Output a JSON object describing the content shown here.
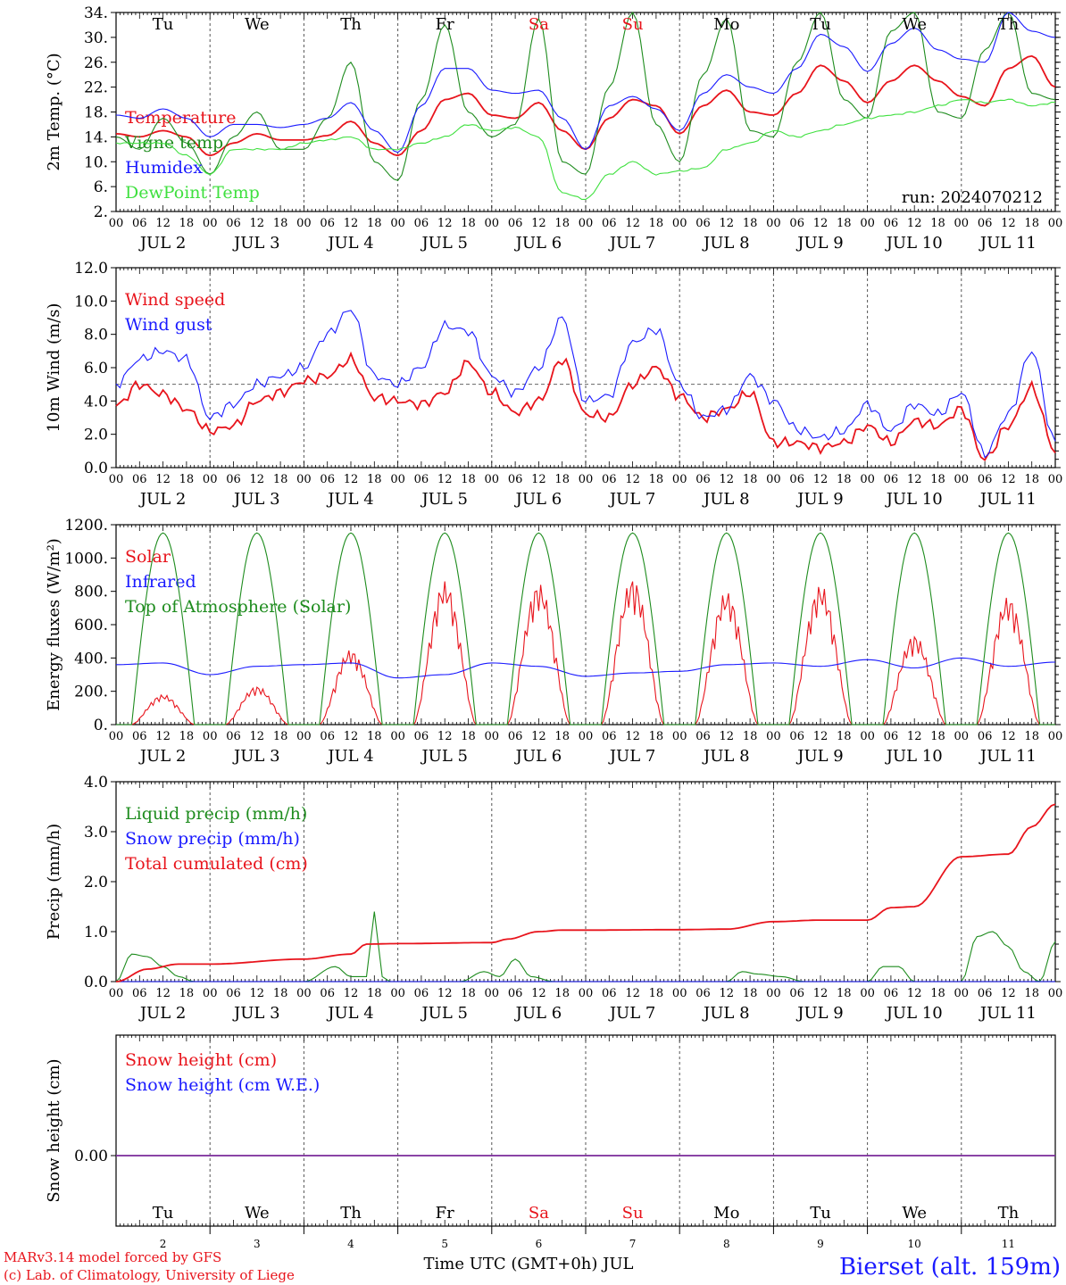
{
  "run_label": "run: 2024070212",
  "footer": {
    "credit1": "MARv3.14 model forced by GFS",
    "credit2": "(c) Lab. of Climatology, University of Liege",
    "axis_title": "Time UTC (GMT+0h) JUL",
    "station": "Bierset (alt. 159m)"
  },
  "colors": {
    "red": "#e8141c",
    "green": "#1e8c1e",
    "blue": "#1a1aff",
    "lightgreen": "#3fe03f",
    "purple": "#7a2a9a"
  },
  "time_axis": {
    "hour_ticks": [
      "00",
      "06",
      "12",
      "18"
    ],
    "final_tick": "00",
    "dates": [
      "JUL  2",
      "JUL  3",
      "JUL  4",
      "JUL  5",
      "JUL  6",
      "JUL  7",
      "JUL  8",
      "JUL  9",
      "JUL 10",
      "JUL 11"
    ],
    "day_names": [
      "Tu",
      "We",
      "Th",
      "Fr",
      "Sa",
      "Su",
      "Mo",
      "Tu",
      "We",
      "Th"
    ],
    "weekend_index": [
      4,
      5
    ],
    "day_numbers": [
      "2",
      "3",
      "4",
      "5",
      "6",
      "7",
      "8",
      "9",
      "10",
      "11"
    ]
  },
  "chart_data": [
    {
      "type": "line",
      "ylabel": "2m Temp. (°C)",
      "ylim": [
        2,
        34
      ],
      "yticks": [
        "2.",
        "6.",
        "10.",
        "14.",
        "18.",
        "22.",
        "26.",
        "30.",
        "34."
      ],
      "x_unit": "hours since JUL 2 00 UTC",
      "series": [
        {
          "name": "Temperature",
          "color": "red",
          "x": [
            0,
            6,
            12,
            18,
            24,
            30,
            36,
            42,
            48,
            54,
            60,
            66,
            72,
            78,
            84,
            90,
            96,
            102,
            108,
            114,
            120,
            126,
            132,
            138,
            144,
            150,
            156,
            162,
            168,
            174,
            180,
            186,
            192,
            198,
            204,
            210,
            216,
            222,
            228,
            234,
            240
          ],
          "y": [
            14.5,
            14,
            15,
            14,
            11,
            13,
            14.5,
            13.5,
            13.5,
            14.2,
            16.5,
            13,
            11,
            15,
            20,
            21,
            17.5,
            17,
            19.5,
            15,
            12,
            17,
            20,
            19,
            14.5,
            19,
            21.5,
            18,
            17.5,
            21,
            25.5,
            23,
            19.5,
            23,
            25.5,
            23,
            20.5,
            19,
            25,
            27,
            22
          ]
        },
        {
          "name": "Vigne temp",
          "color": "green",
          "x": [
            0,
            6,
            12,
            18,
            24,
            30,
            36,
            42,
            48,
            54,
            60,
            66,
            72,
            78,
            84,
            90,
            96,
            102,
            108,
            114,
            120,
            126,
            132,
            138,
            144,
            150,
            156,
            162,
            168,
            174,
            180,
            186,
            192,
            198,
            204,
            210,
            216,
            222,
            228,
            234,
            240
          ],
          "y": [
            14,
            12,
            17,
            13,
            8,
            14,
            18,
            12,
            12,
            17,
            26,
            10,
            7,
            20,
            32,
            18,
            14,
            16,
            33,
            10,
            8,
            22,
            34,
            16,
            10,
            24,
            33,
            15,
            14,
            26,
            34,
            20,
            17,
            31,
            34,
            18,
            17,
            28,
            34,
            21,
            20
          ]
        },
        {
          "name": "Humidex",
          "color": "blue",
          "x": [
            0,
            6,
            12,
            18,
            24,
            30,
            36,
            42,
            48,
            54,
            60,
            66,
            72,
            78,
            84,
            90,
            96,
            102,
            108,
            114,
            120,
            126,
            132,
            138,
            144,
            150,
            156,
            162,
            168,
            174,
            180,
            186,
            192,
            198,
            204,
            210,
            216,
            222,
            228,
            234,
            240
          ],
          "y": [
            17.5,
            17,
            18.5,
            17,
            14,
            16,
            16,
            15.5,
            16,
            17,
            19.5,
            15,
            11.5,
            19,
            25,
            25,
            21.5,
            21,
            21.5,
            17,
            12,
            19,
            20.5,
            18.5,
            15,
            21,
            24,
            22,
            21,
            25,
            30.5,
            28.5,
            24.5,
            29,
            31.5,
            28,
            26.5,
            26,
            34,
            31,
            30
          ]
        },
        {
          "name": "DewPoint Temp",
          "color": "lightgreen",
          "x": [
            0,
            6,
            12,
            18,
            24,
            30,
            36,
            42,
            48,
            54,
            60,
            66,
            72,
            78,
            84,
            90,
            96,
            102,
            108,
            114,
            120,
            126,
            132,
            138,
            144,
            150,
            156,
            162,
            168,
            174,
            180,
            186,
            192,
            198,
            204,
            210,
            216,
            222,
            228,
            234,
            240
          ],
          "y": [
            13,
            13,
            13,
            11,
            8,
            12,
            12,
            12,
            13,
            13.5,
            14,
            12,
            12,
            13,
            14,
            16,
            15,
            15.5,
            14,
            5,
            4,
            8,
            10,
            8,
            8.5,
            9,
            12,
            13,
            15,
            14,
            15,
            16,
            17,
            17.5,
            18,
            19,
            20,
            19.5,
            20,
            19,
            19.5
          ]
        }
      ],
      "day_labels_top": true,
      "run_label": true
    },
    {
      "type": "line",
      "ylabel": "10m Wind (m/s)",
      "ylim": [
        0,
        12
      ],
      "yticks": [
        "0.0",
        "2.0",
        "4.0",
        "6.0",
        "8.0",
        "10.0",
        "12.0"
      ],
      "reference_line": 5.0,
      "series": [
        {
          "name": "Wind speed",
          "color": "red",
          "x": [
            0,
            6,
            12,
            18,
            24,
            30,
            36,
            42,
            48,
            54,
            60,
            66,
            72,
            78,
            84,
            90,
            96,
            102,
            108,
            114,
            120,
            126,
            132,
            138,
            144,
            150,
            156,
            162,
            168,
            174,
            180,
            186,
            192,
            198,
            204,
            210,
            216,
            222,
            228,
            234,
            240
          ],
          "y": [
            3.7,
            5,
            4.4,
            3.5,
            2.2,
            2.5,
            4,
            4.5,
            5.2,
            5.5,
            6.5,
            4.2,
            4,
            3.8,
            4.5,
            6.3,
            4.5,
            3.3,
            4,
            6.5,
            3.2,
            3,
            5,
            6,
            4.3,
            3,
            3.5,
            4.5,
            1.5,
            1.5,
            1.2,
            1.5,
            2.5,
            1.5,
            2.8,
            2.5,
            3.5,
            0.5,
            2.5,
            4.8,
            1
          ]
        },
        {
          "name": "Wind gust",
          "color": "blue",
          "x": [
            0,
            6,
            12,
            18,
            24,
            30,
            36,
            42,
            48,
            54,
            60,
            66,
            72,
            78,
            84,
            90,
            96,
            102,
            108,
            114,
            120,
            126,
            132,
            138,
            144,
            150,
            156,
            162,
            168,
            174,
            180,
            186,
            192,
            198,
            204,
            210,
            216,
            222,
            228,
            234,
            240
          ],
          "y": [
            5,
            6.5,
            7,
            6.5,
            3,
            3.8,
            5,
            5.5,
            6,
            8,
            9.5,
            5.5,
            5,
            6,
            8.5,
            8.2,
            5.5,
            4.5,
            6,
            9,
            4,
            4.3,
            7.5,
            8.3,
            5,
            3,
            3.5,
            5.5,
            4,
            2.3,
            1.8,
            2.2,
            3.8,
            2.2,
            3.8,
            3.2,
            4.5,
            0.8,
            3.2,
            7,
            1.5
          ]
        }
      ]
    },
    {
      "type": "line",
      "ylabel": "Energy fluxes (W/m²)",
      "ylim": [
        0,
        1200
      ],
      "yticks": [
        "0.",
        "200.",
        "400.",
        "600.",
        "800.",
        "1000.",
        "1200."
      ],
      "series": [
        {
          "name": "Solar",
          "color": "red",
          "daily_peak_hour": [
            13,
            14,
            14,
            12,
            13,
            12,
            12,
            12,
            12,
            13
          ],
          "daily_peak": [
            180,
            230,
            450,
            860,
            850,
            880,
            800,
            840,
            540,
            770
          ],
          "sunrise": 4,
          "sunset": 20
        },
        {
          "name": "Infrared",
          "color": "blue",
          "x": [
            0,
            12,
            24,
            36,
            48,
            60,
            72,
            84,
            96,
            108,
            120,
            132,
            144,
            156,
            168,
            180,
            192,
            204,
            216,
            228,
            240
          ],
          "y": [
            360,
            370,
            300,
            350,
            360,
            370,
            280,
            300,
            370,
            350,
            290,
            310,
            320,
            360,
            370,
            350,
            390,
            340,
            400,
            350,
            375
          ]
        },
        {
          "name": "Top of Atmosphere (Solar)",
          "color": "green",
          "daily_peak": 1150,
          "sunrise": 4,
          "sunset": 20
        }
      ]
    },
    {
      "type": "line",
      "ylabel": "Precip (mm/h)",
      "ylim": [
        0,
        4
      ],
      "yticks": [
        "0.0",
        "1.0",
        "2.0",
        "3.0",
        "4.0"
      ],
      "series": [
        {
          "name": "Liquid precip (mm/h)",
          "color": "green",
          "x": [
            0,
            4,
            8,
            12,
            16,
            20,
            48,
            56,
            60,
            64,
            66,
            68,
            70,
            76,
            88,
            94,
            98,
            102,
            106,
            112,
            120,
            126,
            156,
            160,
            164,
            170,
            176,
            192,
            196,
            200,
            204,
            216,
            220,
            224,
            228,
            232,
            236,
            240
          ],
          "y": [
            0,
            0.55,
            0.5,
            0.3,
            0.1,
            0,
            0,
            0.3,
            0.1,
            0.1,
            1.4,
            0.1,
            0,
            0,
            0,
            0.2,
            0.1,
            0.45,
            0.1,
            0,
            0,
            0,
            0,
            0.2,
            0.15,
            0.1,
            0,
            0,
            0.3,
            0.3,
            0,
            0,
            0.9,
            1.0,
            0.7,
            0.2,
            0,
            0.8
          ]
        },
        {
          "name": "Snow precip (mm/h)",
          "color": "blue",
          "x": [
            0,
            240
          ],
          "y": [
            0,
            0
          ]
        },
        {
          "name": "Total cumulated (cm)",
          "color": "red",
          "x": [
            0,
            8,
            16,
            24,
            48,
            60,
            64,
            72,
            96,
            100,
            108,
            114,
            120,
            144,
            156,
            168,
            180,
            192,
            198,
            204,
            216,
            228,
            234,
            240
          ],
          "y": [
            0,
            0.25,
            0.35,
            0.35,
            0.45,
            0.55,
            0.75,
            0.76,
            0.78,
            0.85,
            1.0,
            1.03,
            1.03,
            1.04,
            1.05,
            1.2,
            1.23,
            1.23,
            1.48,
            1.5,
            2.5,
            2.55,
            3.1,
            3.55
          ]
        }
      ]
    },
    {
      "type": "line",
      "ylabel": "Snow height (cm)",
      "yticks": [
        "0.00"
      ],
      "series": [
        {
          "name": "Snow height (cm)",
          "color": "red",
          "x": [
            0,
            240
          ],
          "y": [
            0,
            0
          ]
        },
        {
          "name": "Snow height (cm W.E.)",
          "color": "blue",
          "x": [
            0,
            240
          ],
          "y": [
            0,
            0
          ]
        }
      ],
      "day_labels_bottom": true
    }
  ]
}
